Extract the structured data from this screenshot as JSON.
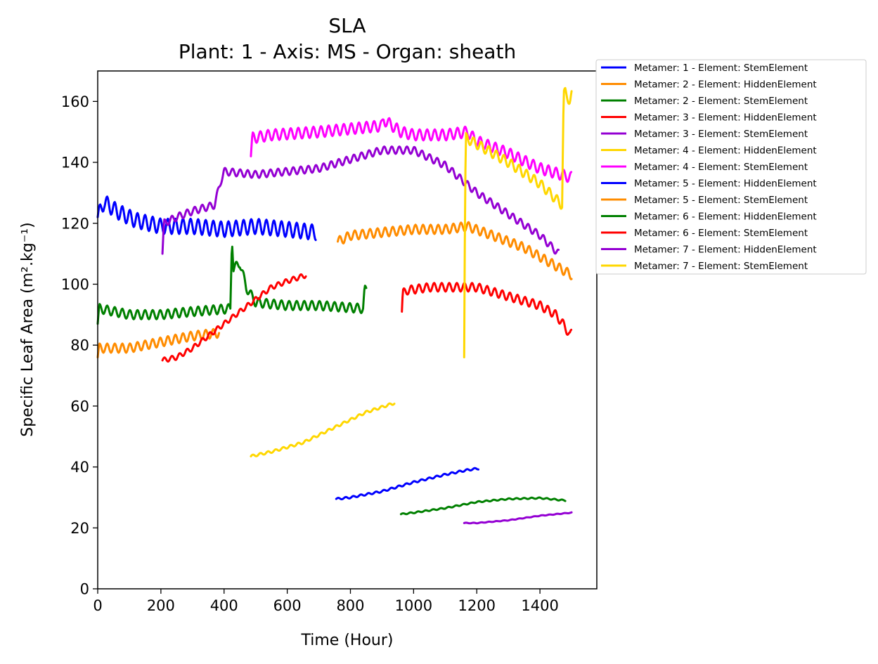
{
  "chart_data": {
    "type": "line",
    "title": "SLA",
    "subtitle": "Plant: 1 - Axis: MS - Organ: sheath",
    "xlabel": "Time (Hour)",
    "ylabel": "Specific Leaf Area (m².kg⁻¹)",
    "xlim": [
      0,
      1580
    ],
    "ylim": [
      0,
      170
    ],
    "xticks": [
      "0",
      "200",
      "400",
      "600",
      "800",
      "1000",
      "1200",
      "1400"
    ],
    "yticks": [
      "0",
      "20",
      "40",
      "60",
      "80",
      "100",
      "120",
      "140",
      "160"
    ],
    "grid": false,
    "legend_position": "outside-right",
    "series": [
      {
        "name": "Metamer: 1 - Element: StemElement",
        "color": "#0000ff",
        "x": [
          0,
          20,
          60,
          120,
          200,
          300,
          400,
          500,
          600,
          690
        ],
        "y": [
          122,
          127,
          124,
          121,
          119,
          119,
          118,
          119,
          118,
          117
        ],
        "wave": 2.5,
        "period": 24
      },
      {
        "name": "Metamer: 2 - Element: HiddenElement",
        "color": "#ff8c00",
        "x": [
          0,
          5,
          100,
          200,
          300,
          385
        ],
        "y": [
          76,
          79,
          79,
          81,
          83,
          84
        ],
        "wave": 1.5,
        "period": 24
      },
      {
        "name": "Metamer: 2 - Element: StemElement",
        "color": "#008000",
        "x": [
          0,
          5,
          100,
          200,
          300,
          420,
          425,
          430,
          450,
          470,
          500,
          600,
          700,
          840,
          845,
          850
        ],
        "y": [
          87,
          92,
          90,
          90,
          91,
          92,
          116,
          105,
          107,
          99,
          94,
          93,
          93,
          92,
          98,
          98
        ],
        "wave": 1.5,
        "period": 24
      },
      {
        "name": "Metamer: 3 - Element: HiddenElement",
        "color": "#ff0000",
        "x": [
          205,
          250,
          300,
          350,
          400,
          450,
          500,
          550,
          600,
          660
        ],
        "y": [
          75,
          76,
          79,
          83,
          87,
          91,
          95,
          99,
          101,
          103
        ],
        "wave": 0.8,
        "period": 24
      },
      {
        "name": "Metamer: 3 - Element: StemElement",
        "color": "#9400d3",
        "x": [
          205,
          210,
          250,
          300,
          370,
          390,
          400,
          500,
          600,
          700,
          800,
          900,
          1000,
          1100,
          1200,
          1300,
          1400,
          1460
        ],
        "y": [
          110,
          120,
          122,
          124,
          126,
          134,
          137,
          136,
          137,
          138,
          141,
          144,
          144,
          139,
          130,
          123,
          116,
          110
        ],
        "wave": 1.2,
        "period": 24
      },
      {
        "name": "Metamer: 4 - Element: HiddenElement",
        "color": "#ffd700",
        "x": [
          485,
          550,
          650,
          750,
          850,
          940
        ],
        "y": [
          43.5,
          45,
          48,
          53,
          58,
          61
        ],
        "wave": 0.4,
        "period": 24
      },
      {
        "name": "Metamer: 4 - Element: StemElement",
        "color": "#ff00ff",
        "x": [
          485,
          490,
          550,
          700,
          800,
          900,
          905,
          960,
          1000,
          1100,
          1170,
          1200,
          1300,
          1400,
          1500
        ],
        "y": [
          142,
          148,
          149,
          150,
          151,
          152,
          154,
          150,
          149,
          149,
          150,
          147,
          143,
          138,
          135
        ],
        "wave": 1.8,
        "period": 24
      },
      {
        "name": "Metamer: 5 - Element: HiddenElement",
        "color": "#0000ff",
        "x": [
          755,
          800,
          900,
          1000,
          1100,
          1170,
          1205
        ],
        "y": [
          29.5,
          30,
          32,
          35,
          37.5,
          39,
          39.5
        ],
        "wave": 0.3,
        "period": 24
      },
      {
        "name": "Metamer: 5 - Element: StemElement",
        "color": "#ff8c00",
        "x": [
          760,
          800,
          900,
          1000,
          1100,
          1170,
          1250,
          1350,
          1450,
          1500
        ],
        "y": [
          114,
          116,
          117,
          118,
          118,
          119,
          116,
          112,
          106,
          103
        ],
        "wave": 1.5,
        "period": 24
      },
      {
        "name": "Metamer: 6 - Element: HiddenElement",
        "color": "#008000",
        "x": [
          960,
          1000,
          1100,
          1200,
          1300,
          1400,
          1480
        ],
        "y": [
          24.5,
          25,
          26.5,
          28.5,
          29.5,
          29.8,
          29
        ],
        "wave": 0.2,
        "period": 24
      },
      {
        "name": "Metamer: 6 - Element: StemElement",
        "color": "#ff0000",
        "x": [
          963,
          966,
          980,
          1050,
          1100,
          1150,
          1200,
          1300,
          1400,
          1450,
          1480,
          1495,
          1500
        ],
        "y": [
          91,
          97,
          98,
          99,
          99,
          99,
          99,
          96,
          93,
          90,
          86,
          83,
          84
        ],
        "wave": 1.4,
        "period": 24
      },
      {
        "name": "Metamer: 7 - Element: HiddenElement",
        "color": "#9400d3",
        "x": [
          1160,
          1200,
          1300,
          1400,
          1500
        ],
        "y": [
          21.6,
          21.6,
          22.5,
          24,
          25
        ],
        "wave": 0.1,
        "period": 24
      },
      {
        "name": "Metamer: 7 - Element: StemElement",
        "color": "#ffd700",
        "x": [
          1160,
          1163,
          1166,
          1200,
          1300,
          1400,
          1470,
          1475,
          1480,
          1495,
          1500
        ],
        "y": [
          76,
          130,
          148,
          146,
          140,
          133,
          126,
          162,
          163,
          160,
          162
        ],
        "wave": 1.6,
        "period": 24
      }
    ]
  }
}
